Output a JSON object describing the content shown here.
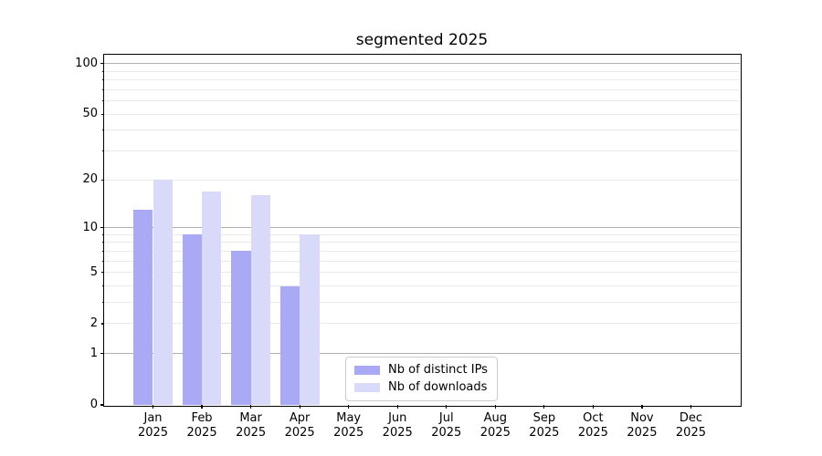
{
  "chart_data": {
    "type": "bar",
    "title": "segmented 2025",
    "year_label": "2025",
    "categories": [
      "Jan",
      "Feb",
      "Mar",
      "Apr",
      "May",
      "Jun",
      "Jul",
      "Aug",
      "Sep",
      "Oct",
      "Nov",
      "Dec"
    ],
    "series": [
      {
        "name": "Nb of distinct IPs",
        "color": "#a9a9f6",
        "values": [
          13,
          9,
          7,
          4,
          0,
          0,
          0,
          0,
          0,
          0,
          0,
          0
        ]
      },
      {
        "name": "Nb of downloads",
        "color": "#d9d9f9",
        "values": [
          20,
          17,
          16,
          9,
          0,
          0,
          0,
          0,
          0,
          0,
          0,
          0
        ]
      }
    ],
    "yscale": "log1p",
    "ylim": [
      0,
      113
    ],
    "yticks_labeled": [
      0,
      1,
      2,
      5,
      10,
      20,
      50,
      100
    ],
    "yticks_major": [
      0,
      1,
      10,
      100
    ],
    "yticks_minor": [
      2,
      3,
      4,
      5,
      6,
      7,
      8,
      9,
      20,
      30,
      40,
      50,
      60,
      70,
      80,
      90
    ],
    "grid": true,
    "legend_position": "lower center",
    "colors": {
      "grid_major": "#b0b0b0",
      "grid_minor": "#e9e9e9",
      "axis": "#000000",
      "legend_border": "#cccccc",
      "background": "#ffffff"
    }
  }
}
